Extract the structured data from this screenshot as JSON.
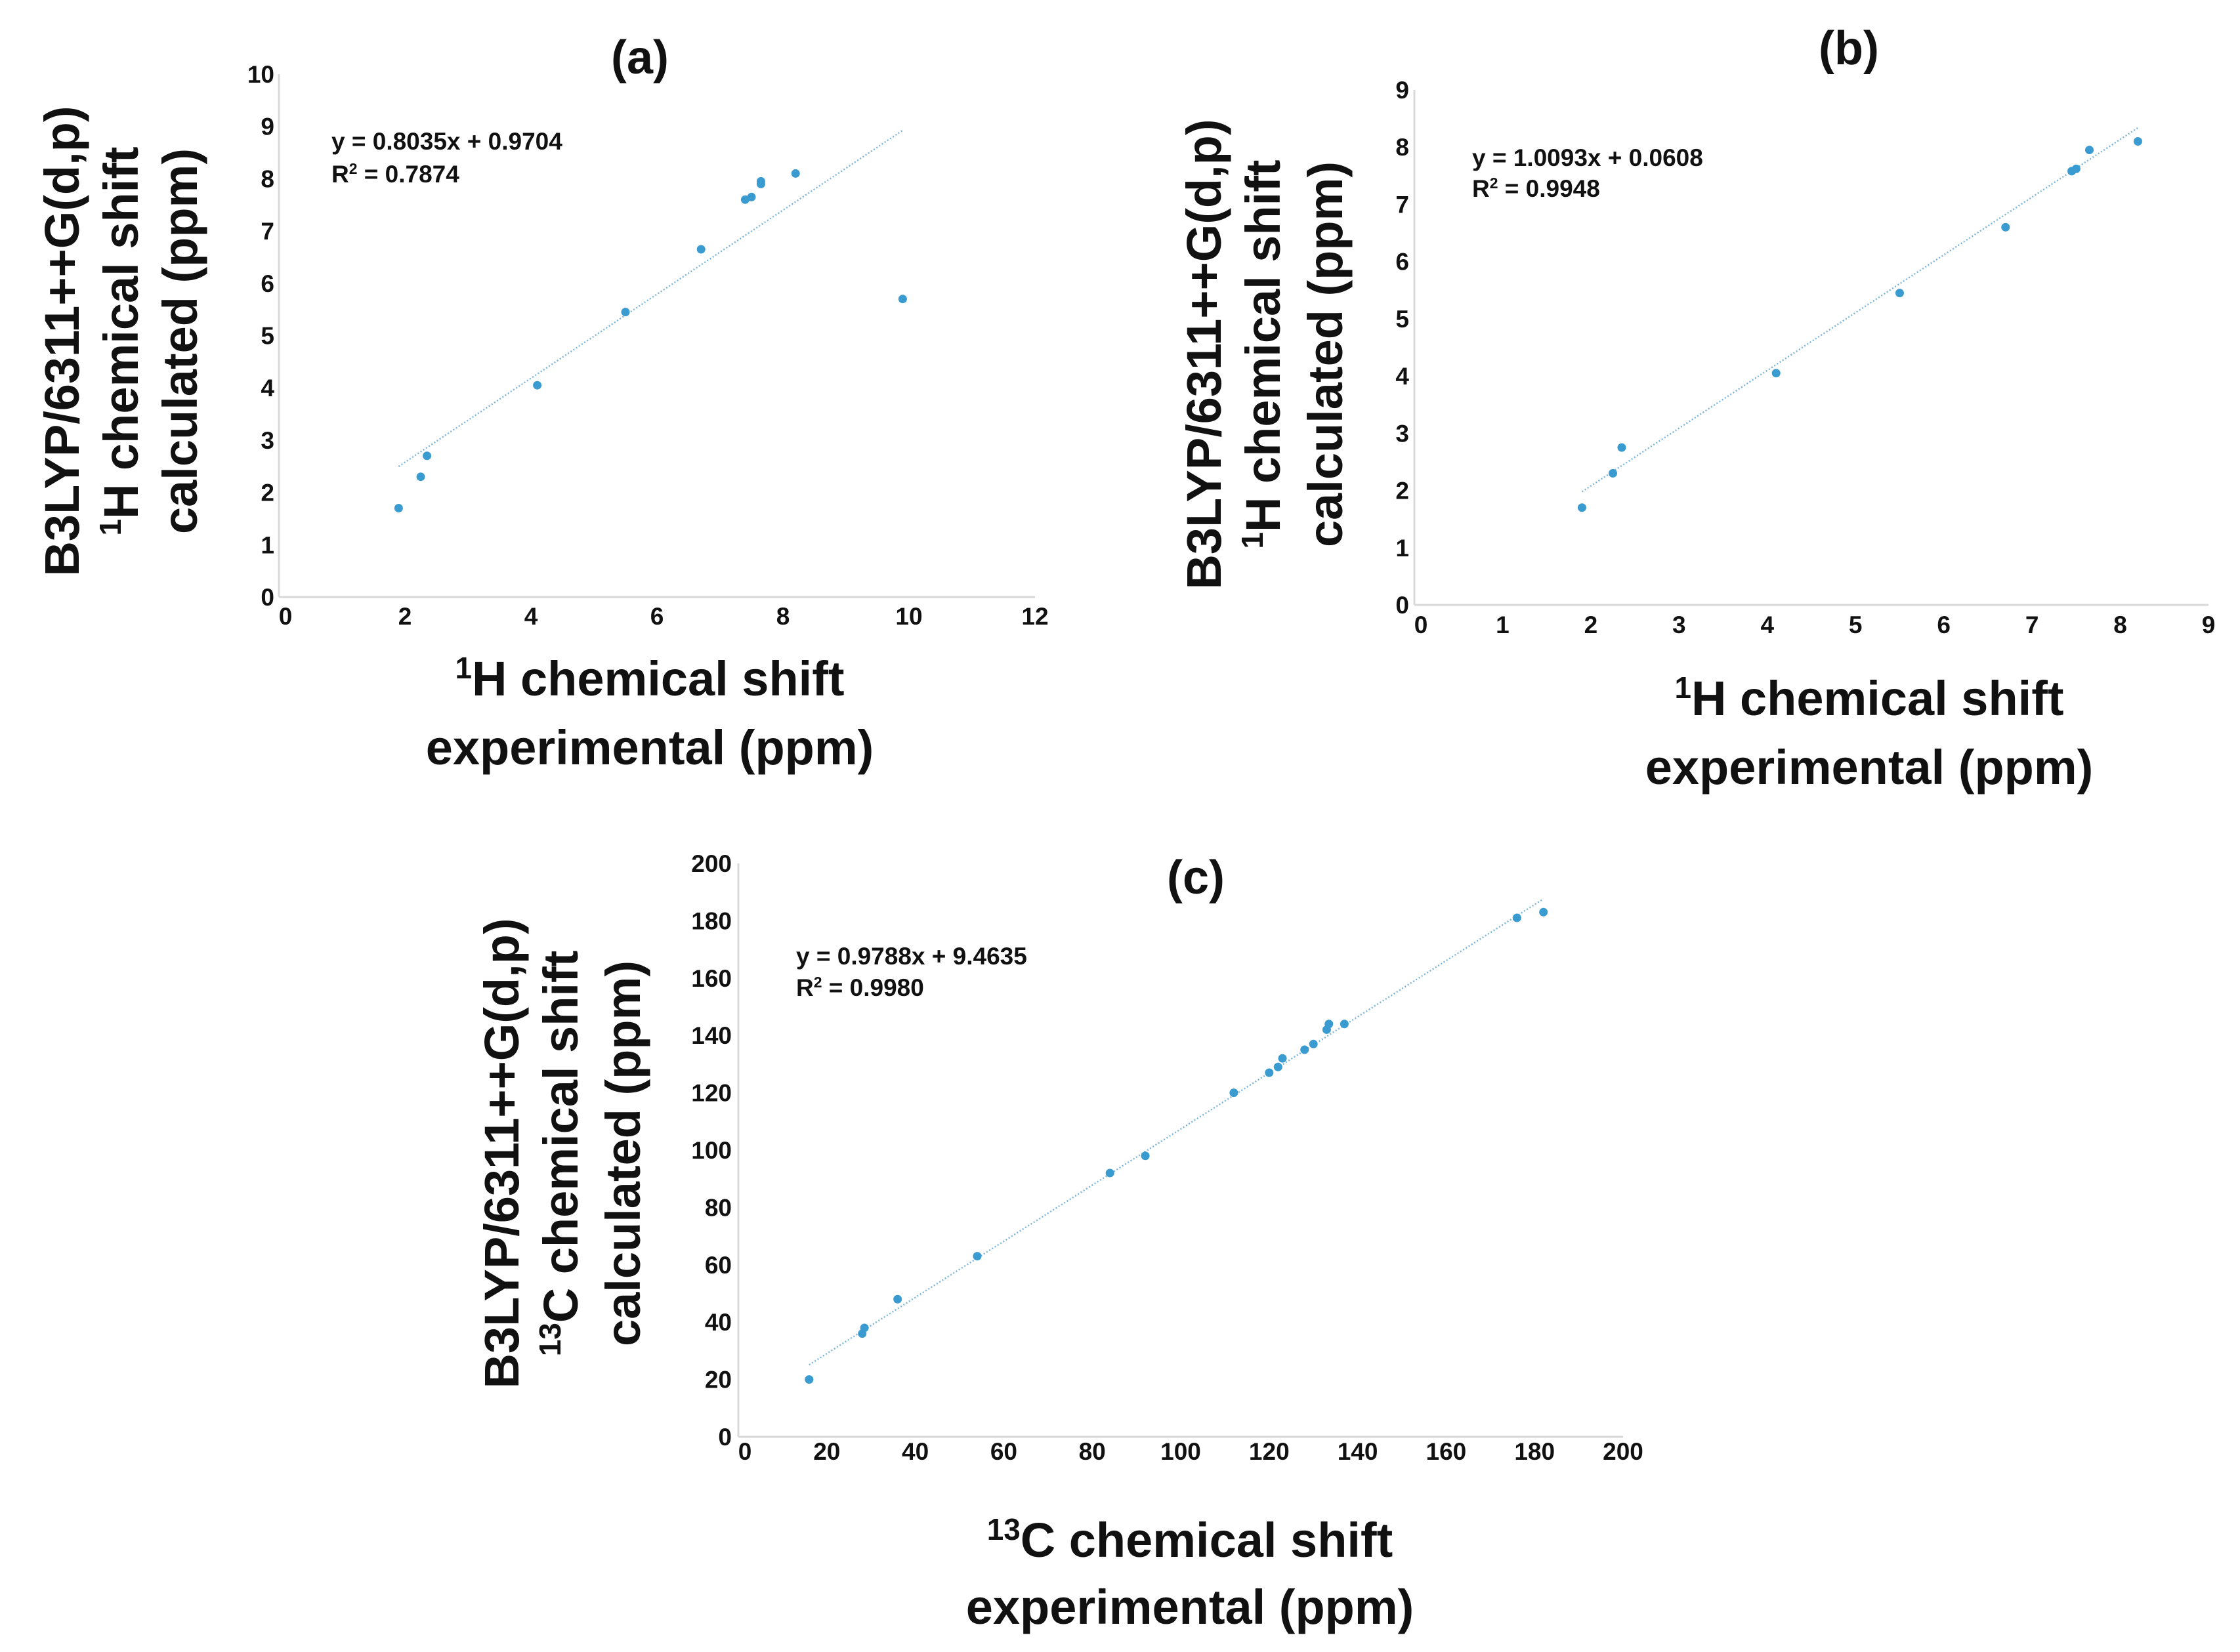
{
  "chart_data": [
    {
      "id": "a",
      "type": "scatter",
      "title": "(a)",
      "xlabel_line1": "H chemical shift",
      "xlabel_sup": "1",
      "xlabel_line2": "experimental (ppm)",
      "ylabel_line1": "B3LYP/6311++G(d,p)",
      "ylabel_line2": "H chemical shift",
      "ylabel_sup": "1",
      "ylabel_line3": "calculated (ppm)",
      "xlim": [
        0,
        12
      ],
      "ylim": [
        0,
        10
      ],
      "xticks": [
        0,
        2,
        4,
        6,
        8,
        10,
        12
      ],
      "yticks": [
        0,
        1,
        2,
        3,
        4,
        5,
        6,
        7,
        8,
        9,
        10
      ],
      "equation": "y = 0.8035x + 0.9704",
      "r2_label": "R",
      "r2_sup": "2",
      "r2_value": " = 0.7874",
      "trendline": {
        "slope": 0.8035,
        "intercept": 0.9704,
        "x_range": [
          1.9,
          9.9
        ]
      },
      "marker_color": "#3a9bd0",
      "line_color": "#7db6d8",
      "points": [
        {
          "x": 1.9,
          "y": 1.7
        },
        {
          "x": 2.25,
          "y": 2.3
        },
        {
          "x": 2.35,
          "y": 2.7
        },
        {
          "x": 4.1,
          "y": 4.05
        },
        {
          "x": 5.5,
          "y": 5.45
        },
        {
          "x": 6.7,
          "y": 6.65
        },
        {
          "x": 7.4,
          "y": 7.6
        },
        {
          "x": 7.5,
          "y": 7.65
        },
        {
          "x": 7.65,
          "y": 7.9
        },
        {
          "x": 7.65,
          "y": 7.95
        },
        {
          "x": 8.2,
          "y": 8.1
        },
        {
          "x": 9.9,
          "y": 5.7
        }
      ]
    },
    {
      "id": "b",
      "type": "scatter",
      "title": "(b)",
      "xlabel_line1": "H chemical shift",
      "xlabel_sup": "1",
      "xlabel_line2": "experimental (ppm)",
      "ylabel_line1": "B3LYP/6311++G(d,p)",
      "ylabel_line2": "H chemical shift",
      "ylabel_sup": "1",
      "ylabel_line3": "calculated (ppm)",
      "xlim": [
        0,
        9
      ],
      "ylim": [
        0,
        9
      ],
      "xticks": [
        0,
        1,
        2,
        3,
        4,
        5,
        6,
        7,
        8,
        9
      ],
      "yticks": [
        0,
        1,
        2,
        3,
        4,
        5,
        6,
        7,
        8,
        9
      ],
      "equation": "y = 1.0093x + 0.0608",
      "r2_label": "R",
      "r2_sup": "2",
      "r2_value": " = 0.9948",
      "trendline": {
        "slope": 1.0093,
        "intercept": 0.0608,
        "x_range": [
          1.9,
          8.2
        ]
      },
      "marker_color": "#3a9bd0",
      "line_color": "#7db6d8",
      "points": [
        {
          "x": 1.9,
          "y": 1.7
        },
        {
          "x": 2.25,
          "y": 2.3
        },
        {
          "x": 2.35,
          "y": 2.75
        },
        {
          "x": 4.1,
          "y": 4.05
        },
        {
          "x": 5.5,
          "y": 5.45
        },
        {
          "x": 6.7,
          "y": 6.6
        },
        {
          "x": 7.45,
          "y": 7.58
        },
        {
          "x": 7.5,
          "y": 7.62
        },
        {
          "x": 7.65,
          "y": 7.95
        },
        {
          "x": 8.2,
          "y": 8.1
        }
      ]
    },
    {
      "id": "c",
      "type": "scatter",
      "title": "(c)",
      "xlabel_line1": "C chemical shift",
      "xlabel_sup": "13",
      "xlabel_line2": "experimental (ppm)",
      "ylabel_line1": "B3LYP/6311++G(d,p)",
      "ylabel_line2": "C chemical shift",
      "ylabel_sup": "13",
      "ylabel_line3": "calculated (ppm)",
      "xlim": [
        0,
        200
      ],
      "ylim": [
        0,
        200
      ],
      "xticks": [
        0,
        20,
        40,
        60,
        80,
        100,
        120,
        140,
        160,
        180,
        200
      ],
      "yticks": [
        0,
        20,
        40,
        60,
        80,
        100,
        120,
        140,
        160,
        180,
        200
      ],
      "equation": "y = 0.9788x + 9.4635",
      "r2_label": "R",
      "r2_sup": "2",
      "r2_value": " = 0.9980",
      "trendline": {
        "slope": 0.9788,
        "intercept": 9.4635,
        "x_range": [
          16,
          182
        ]
      },
      "marker_color": "#3a9bd0",
      "line_color": "#7db6d8",
      "points": [
        {
          "x": 16,
          "y": 20
        },
        {
          "x": 28,
          "y": 36
        },
        {
          "x": 28.5,
          "y": 38
        },
        {
          "x": 36,
          "y": 48
        },
        {
          "x": 54,
          "y": 63
        },
        {
          "x": 84,
          "y": 92
        },
        {
          "x": 92,
          "y": 98
        },
        {
          "x": 112,
          "y": 120
        },
        {
          "x": 120,
          "y": 127
        },
        {
          "x": 122,
          "y": 129
        },
        {
          "x": 123,
          "y": 132
        },
        {
          "x": 128,
          "y": 135
        },
        {
          "x": 130,
          "y": 137
        },
        {
          "x": 133,
          "y": 142
        },
        {
          "x": 133.5,
          "y": 144
        },
        {
          "x": 137,
          "y": 144
        },
        {
          "x": 176,
          "y": 181
        },
        {
          "x": 182,
          "y": 183
        }
      ]
    }
  ]
}
